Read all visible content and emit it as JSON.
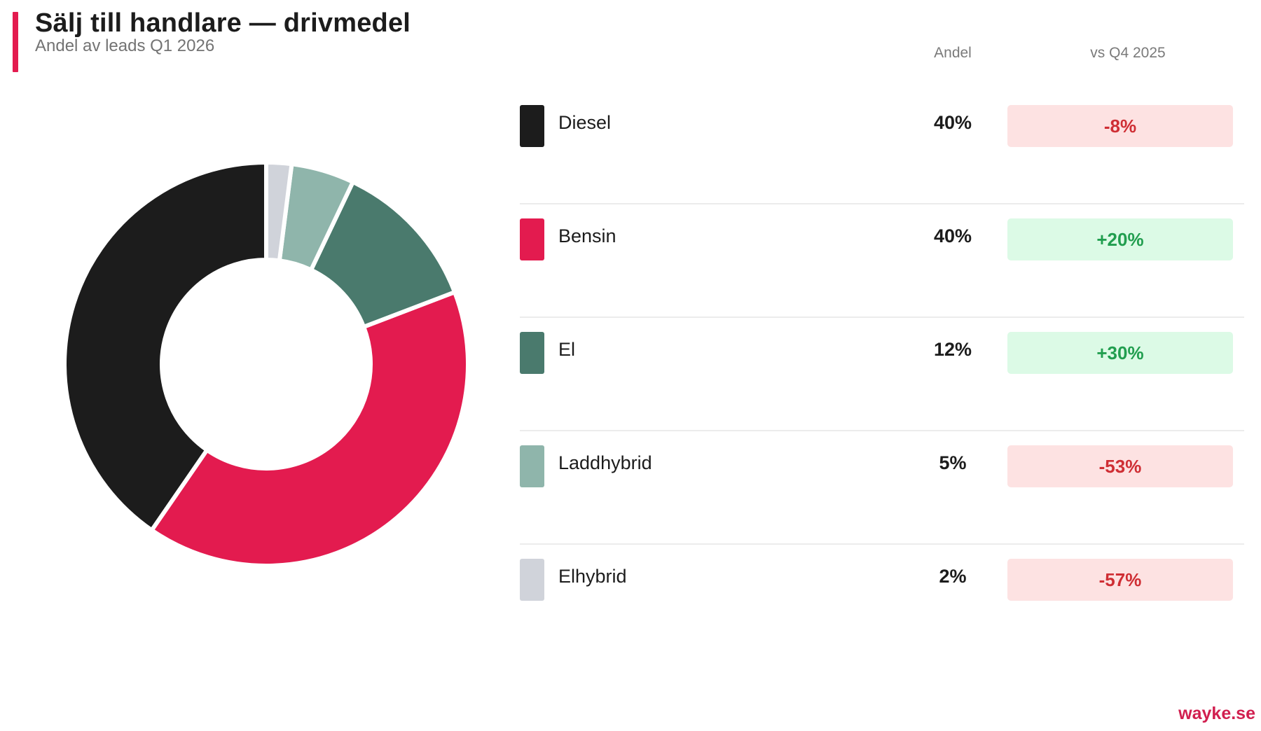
{
  "header": {
    "title": "Sälj till handlare — drivmedel",
    "subtitle": "Andel av leads Q1 2026",
    "accent_color": "#e31b4f"
  },
  "table": {
    "columns": [
      "Andel",
      "vs Q4 2025"
    ],
    "rows": [
      {
        "label": "Diesel",
        "share": "40%",
        "change": "-8%",
        "trend": "neg",
        "color": "#1c1c1c"
      },
      {
        "label": "Bensin",
        "share": "40%",
        "change": "+20%",
        "trend": "pos",
        "color": "#e31b4f"
      },
      {
        "label": "El",
        "share": "12%",
        "change": "+30%",
        "trend": "pos",
        "color": "#4a7a6d"
      },
      {
        "label": "Laddhybrid",
        "share": "5%",
        "change": "-53%",
        "trend": "neg",
        "color": "#8fb5ab"
      },
      {
        "label": "Elhybrid",
        "share": "2%",
        "change": "-57%",
        "trend": "neg",
        "color": "#d0d3da"
      }
    ]
  },
  "footer": {
    "brand": "wayke.se"
  },
  "chart_data": {
    "type": "pie",
    "variant": "donut",
    "title": "Sälj till handlare — drivmedel",
    "subtitle": "Andel av leads Q1 2026",
    "categories": [
      "Diesel",
      "Bensin",
      "El",
      "Laddhybrid",
      "Elhybrid"
    ],
    "values": [
      40,
      40,
      12,
      5,
      2
    ],
    "unit": "%",
    "colors": [
      "#1c1c1c",
      "#e31b4f",
      "#4a7a6d",
      "#8fb5ab",
      "#d0d3da"
    ],
    "change_vs_q4_2025": [
      -8,
      20,
      30,
      -53,
      -57
    ],
    "legend_position": "right",
    "direction": "counter-clockwise from 12 o'clock"
  }
}
